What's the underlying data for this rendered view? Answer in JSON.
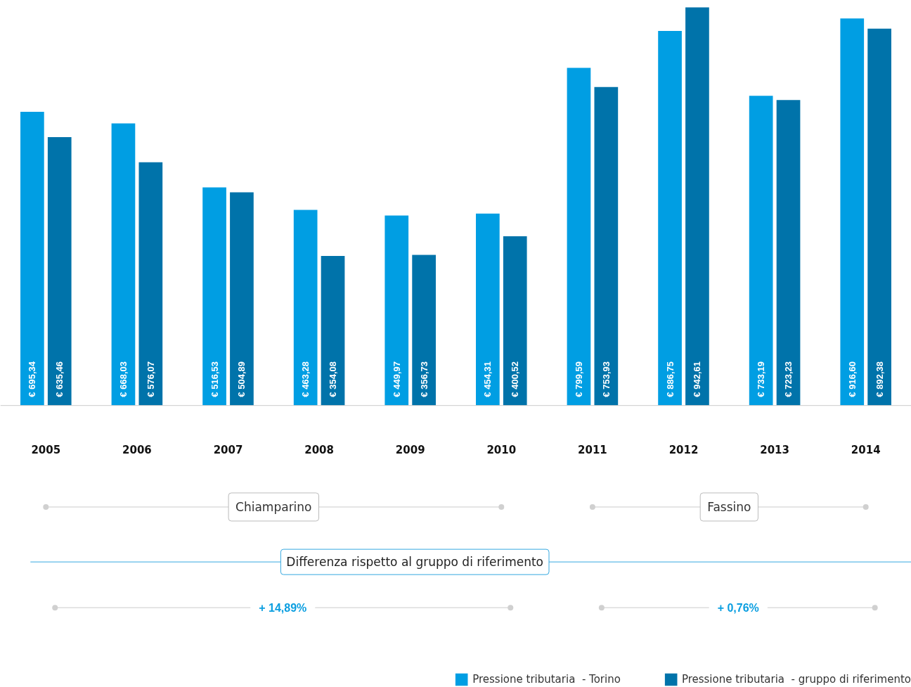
{
  "chart_data": {
    "type": "bar",
    "categories": [
      "2005",
      "2006",
      "2007",
      "2008",
      "2009",
      "2010",
      "2011",
      "2012",
      "2013",
      "2014"
    ],
    "series": [
      {
        "name": "Pressione tributaria  - Torino",
        "color": "#009ee3",
        "values": [
          695.34,
          668.03,
          516.53,
          463.28,
          449.97,
          454.31,
          799.59,
          886.75,
          733.19,
          916.6
        ],
        "value_labels": [
          "€ 695,34",
          "€ 668,03",
          "€ 516,53",
          "€ 463,28",
          "€ 449,97",
          "€ 454,31",
          "€ 799,59",
          "€ 886,75",
          "€ 733,19",
          "€ 916,60"
        ]
      },
      {
        "name": "Pressione tributaria  - gruppo di riferimento",
        "color": "#0073aa",
        "values": [
          635.46,
          576.07,
          504.89,
          354.08,
          356.73,
          400.52,
          753.93,
          942.61,
          723.23,
          892.38
        ],
        "value_labels": [
          "€ 635,46",
          "€ 576,07",
          "€ 504,89",
          "€ 354,08",
          "€ 356,73",
          "€ 400,52",
          "€ 753,93",
          "€ 942,61",
          "€ 723,23",
          "€ 892,38"
        ]
      }
    ],
    "annotations": [
      "Chiamparino",
      "Fassino",
      "Differenza rispetto al gruppo di riferimento",
      "+ 14,89%",
      "+ 0,76%"
    ],
    "legend": "bottom right",
    "grid": false
  }
}
